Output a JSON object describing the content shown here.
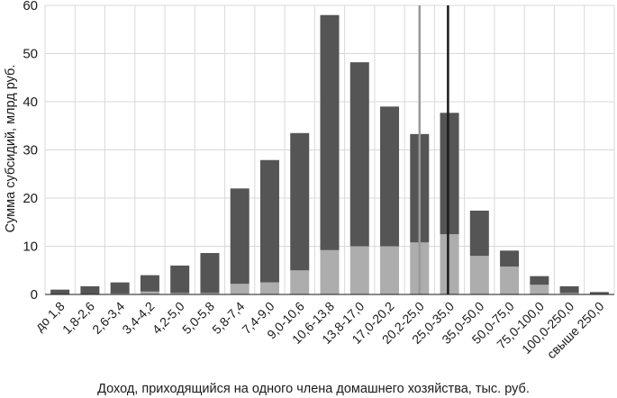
{
  "chart_data": {
    "type": "bar",
    "stacked": true,
    "categories": [
      "до 1,8",
      "1,8-2,6",
      "2,6-3,4",
      "3,4-4,2",
      "4,2-5,0",
      "5,0-5,8",
      "5,8-7,4",
      "7,4-9,0",
      "9,0-10,6",
      "10,6-13,8",
      "13,8-17,0",
      "17,0-20,2",
      "20,2-25,0",
      "25,0-35,0",
      "35,0-50,0",
      "50,0-75,0",
      "75,0-100,0",
      "100,0-250,0",
      "свыше 250,0"
    ],
    "series": [
      {
        "color": "#adadad",
        "values": [
          0.1,
          0.1,
          0.2,
          0.6,
          0.3,
          0.3,
          2.2,
          2.5,
          5.0,
          9.2,
          10.0,
          10.0,
          10.8,
          12.5,
          8.0,
          5.8,
          2.0,
          0.3,
          0.1
        ]
      },
      {
        "color": "#555555",
        "values": [
          0.9,
          1.6,
          2.3,
          3.4,
          5.7,
          8.3,
          19.8,
          25.4,
          28.5,
          48.8,
          38.2,
          29.0,
          22.5,
          25.2,
          9.4,
          3.3,
          1.8,
          1.4,
          0.4
        ]
      }
    ],
    "totals": [
      1.0,
      1.7,
      2.5,
      4.0,
      6.0,
      8.6,
      22.0,
      27.9,
      33.5,
      58.0,
      48.2,
      39.0,
      33.3,
      37.7,
      17.4,
      9.1,
      3.8,
      1.7,
      0.5
    ],
    "ylim": [
      0,
      60
    ],
    "yticks": [
      0,
      10,
      20,
      30,
      40,
      50,
      60
    ],
    "ylabel": "Сумма субсидий, млрд руб.",
    "xlabel": "Доход, приходящийся на одного члена домашнего хозяйства, тыс. руб.",
    "grid": true,
    "reference_lines": [
      {
        "x": 12.5,
        "color": "#999999"
      },
      {
        "x": 13.45,
        "color": "#1a1a1a"
      }
    ]
  }
}
